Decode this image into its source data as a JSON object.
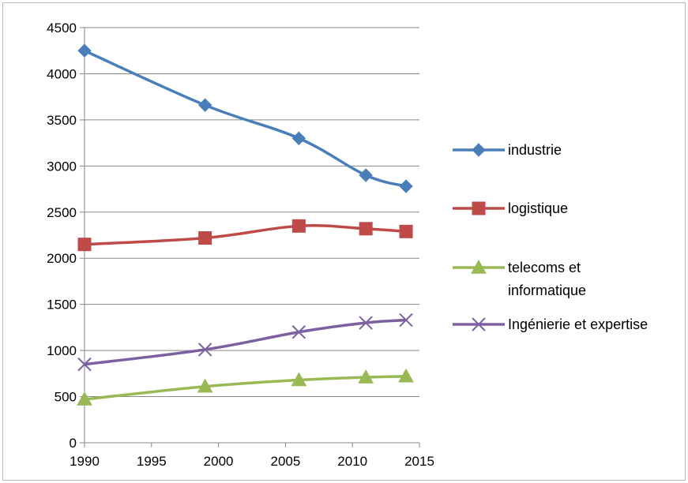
{
  "chart_data": {
    "type": "line",
    "title": "",
    "xlabel": "",
    "ylabel": "",
    "xlim": [
      1990,
      2015
    ],
    "ylim": [
      0,
      4500
    ],
    "x_ticks": [
      1990,
      1995,
      2000,
      2005,
      2010,
      2015
    ],
    "y_ticks": [
      0,
      500,
      1000,
      1500,
      2000,
      2500,
      3000,
      3500,
      4000,
      4500
    ],
    "grid": "horizontal",
    "legend_position": "right",
    "series": [
      {
        "name": "industrie",
        "color": "#4a7ebb",
        "marker": "diamond",
        "x": [
          1990,
          1999,
          2006,
          2011,
          2014
        ],
        "y": [
          4250,
          3660,
          3300,
          2900,
          2780
        ]
      },
      {
        "name": "logistique",
        "color": "#be4b48",
        "marker": "square",
        "x": [
          1990,
          1999,
          2006,
          2011,
          2014
        ],
        "y": [
          2150,
          2220,
          2350,
          2320,
          2290
        ]
      },
      {
        "name": "telecoms et informatique",
        "legend_lines": [
          "telecoms et",
          "informatique"
        ],
        "color": "#98b954",
        "marker": "triangle",
        "x": [
          1990,
          1999,
          2006,
          2011,
          2014
        ],
        "y": [
          470,
          610,
          680,
          710,
          720
        ]
      },
      {
        "name": "Ingénierie et expertise",
        "color": "#7d60a0",
        "marker": "x",
        "x": [
          1990,
          1999,
          2006,
          2011,
          2014
        ],
        "y": [
          850,
          1010,
          1200,
          1300,
          1330
        ]
      }
    ]
  }
}
